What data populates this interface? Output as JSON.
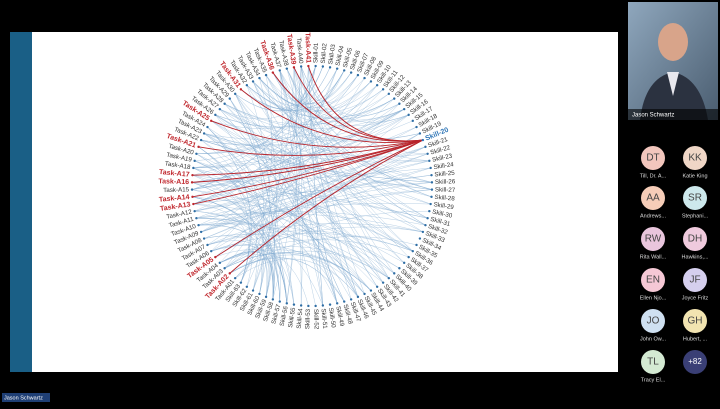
{
  "slide": {
    "tasks": [
      "Task-A01",
      {
        "label": "Task-A02",
        "color": "#c0272d"
      },
      "Task-A03",
      "Task-A04",
      {
        "label": "Task-A05",
        "color": "#c0272d"
      },
      "Task-A06",
      "Task-A07",
      "Task-A08",
      "Task-A09",
      "Task-A10",
      "Task-A11",
      "Task-A12",
      {
        "label": "Task-A13",
        "color": "#c0272d"
      },
      {
        "label": "Task-A14",
        "color": "#c0272d"
      },
      "Task-A15",
      {
        "label": "Task-A16",
        "color": "#c0272d"
      },
      {
        "label": "Task-A17",
        "color": "#c0272d"
      },
      "Task-A18",
      "Task-A19",
      "Task-A20",
      {
        "label": "Task-A21",
        "color": "#c0272d"
      },
      "Task-A22",
      "Task-A23",
      "Task-A24",
      {
        "label": "Task-A25",
        "color": "#c0272d"
      },
      "Task-A26",
      "Task-A27",
      "Task-A28",
      "Task-A29",
      "Task-A30",
      {
        "label": "Task-A31",
        "color": "#c0272d"
      },
      "Task-A32",
      "Task-A33",
      "Task-A34",
      "Task-A35",
      {
        "label": "Task-A36",
        "color": "#c0272d"
      },
      "Task-A37",
      "Task-A38",
      {
        "label": "Task-A39",
        "color": "#c0272d"
      },
      "Task-A40",
      {
        "label": "Task-A41",
        "color": "#c0272d"
      }
    ],
    "skills": [
      "Skill-01",
      "Skill-02",
      "Skill-03",
      "Skill-04",
      "Skill-05",
      "Skill-06",
      "Skill-07",
      "Skill-08",
      "Skill-09",
      "Skill-10",
      "Skill-11",
      "Skill-12",
      "Skill-13",
      "Skill-14",
      "Skill-15",
      "Skill-16",
      "Skill-17",
      "Skill-18",
      "Skill-19",
      {
        "label": "Skill-20",
        "color": "#2e75b6"
      },
      "Skill-21",
      "Skill-22",
      "Skill-23",
      "Skill-24",
      "Skill-25",
      "Skill-26",
      "Skill-27",
      "Skill-28",
      "Skill-29",
      "Skill-30",
      "Skill-31",
      "Skill-32",
      "Skill-33",
      "Skill-34",
      "Skill-35",
      "Skill-36",
      "Skill-37",
      "Skill-38",
      "Skill-39",
      "Skill-40",
      "Skill-41",
      "Skill-42",
      "Skill-43",
      "Skill-44",
      "Skill-45",
      "Skill-46",
      "Skill-47",
      "Skill-48",
      "Skill-49",
      "Skill-50",
      "Skill-51",
      "Skill-52",
      "Skill-53",
      "Skill-54",
      "Skill-55",
      "Skill-56",
      "Skill-57",
      "Skill-58",
      "Skill-59",
      "Skill-60",
      "Skill-61",
      "Skill-62",
      "Skill-63"
    ]
  },
  "video": {
    "name": "Jason Schwartz"
  },
  "participants": [
    {
      "initials": "DT",
      "name": "Till, Dr. A...",
      "color": "#f2c6bd"
    },
    {
      "initials": "KK",
      "name": "Katie King",
      "color": "#efd6c6"
    },
    {
      "initials": "AA",
      "name": "Andrews...",
      "color": "#f6cdb8"
    },
    {
      "initials": "SR",
      "name": "Stephani...",
      "color": "#cde8ec"
    },
    {
      "initials": "RW",
      "name": "Rita Wall...",
      "color": "#e9c5dc"
    },
    {
      "initials": "DH",
      "name": "Hawkins,...",
      "color": "#efcadd"
    },
    {
      "initials": "EN",
      "name": "Ellen Njo...",
      "color": "#f5c8d5"
    },
    {
      "initials": "JF",
      "name": "Joyce Fritz",
      "color": "#d5cfee"
    },
    {
      "initials": "JO",
      "name": "John Ow...",
      "color": "#cfe0f1"
    },
    {
      "initials": "GH",
      "name": "Hubert, ...",
      "color": "#f2e4b1"
    },
    {
      "initials": "TL",
      "name": "Tracy El...",
      "color": "#d4ead3"
    }
  ],
  "overflow": "+82",
  "speaker_label": "Jason Schwartz"
}
